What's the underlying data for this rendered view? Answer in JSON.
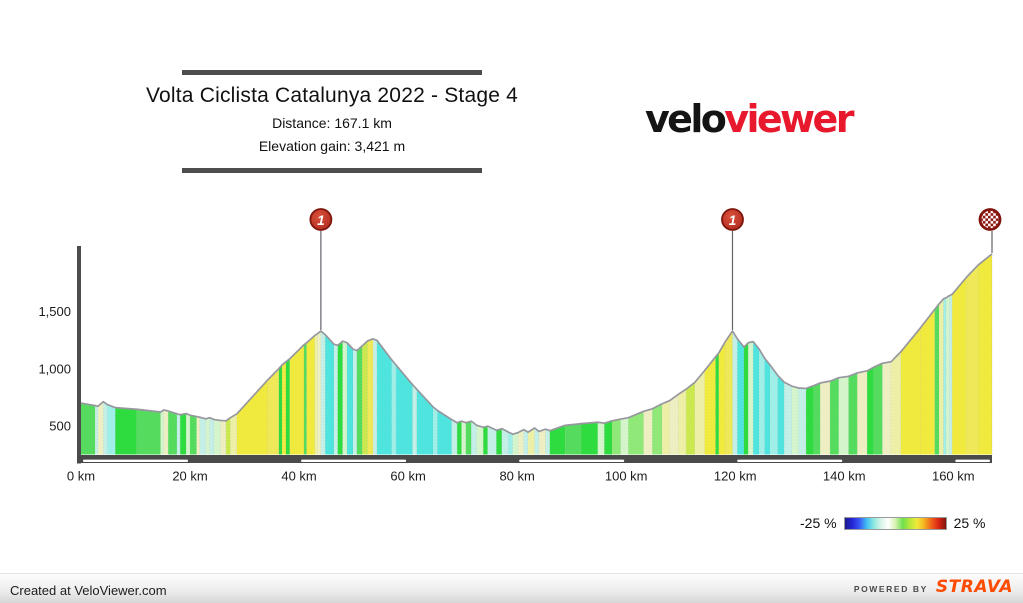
{
  "header": {
    "title": "Volta Ciclista Catalunya 2022 - Stage 4",
    "distance_label": "Distance: 167.1 km",
    "elevation_label": "Elevation gain: 3,421 m",
    "logo": {
      "part1": "velo",
      "part2": "viewer",
      "part2_color": "#e8192c"
    }
  },
  "chart_data": {
    "type": "area",
    "title": "Volta Ciclista Catalunya 2022 - Stage 4",
    "distance_km": 167.1,
    "elevation_gain_m": 3421,
    "xlim": [
      0,
      167.1
    ],
    "ylim": [
      250,
      2050
    ],
    "x_ticks": [
      {
        "km": 0,
        "label": "0 km"
      },
      {
        "km": 20,
        "label": "20 km"
      },
      {
        "km": 40,
        "label": "40 km"
      },
      {
        "km": 60,
        "label": "60 km"
      },
      {
        "km": 80,
        "label": "80 km"
      },
      {
        "km": 100,
        "label": "100 km"
      },
      {
        "km": 120,
        "label": "120 km"
      },
      {
        "km": 140,
        "label": "140 km"
      },
      {
        "km": 160,
        "label": "160 km"
      }
    ],
    "y_ticks": [
      {
        "elev": 500,
        "label": "500"
      },
      {
        "elev": 1000,
        "label": "1,000"
      },
      {
        "elev": 1500,
        "label": "1,500"
      }
    ],
    "grid": false,
    "outline_color": "#97979f",
    "axis_color": "#4d4d4d",
    "start_elev": 700,
    "segments": [
      [
        2.6,
        678,
        "#55DC5F"
      ],
      [
        3.1,
        672,
        "#C4EFE6"
      ],
      [
        4.1,
        712,
        "#EDEEC2"
      ],
      [
        4.8,
        688,
        "#C4EFE6"
      ],
      [
        6.3,
        660,
        "#9FEFE8"
      ],
      [
        10.2,
        646,
        "#2FDC3F"
      ],
      [
        14.6,
        622,
        "#55DC5F"
      ],
      [
        15.2,
        640,
        "#D4F4CC"
      ],
      [
        16.0,
        630,
        "#EDEEC2"
      ],
      [
        17.6,
        606,
        "#55DC5F"
      ],
      [
        18.2,
        598,
        "#C4EFE6"
      ],
      [
        19.3,
        608,
        "#2FDC3F"
      ],
      [
        20.0,
        594,
        "#D4F4CC"
      ],
      [
        21.2,
        582,
        "#55DC5F"
      ],
      [
        21.8,
        576,
        "#EDEEC2"
      ],
      [
        22.9,
        562,
        "#C4EFE6"
      ],
      [
        23.6,
        572,
        "#D4F4CC"
      ],
      [
        24.4,
        556,
        "#C4EFE6"
      ],
      [
        25.6,
        548,
        "#D4F4CC"
      ],
      [
        26.6,
        545,
        "#EDEEC2"
      ],
      [
        27.4,
        572,
        "#CBE84E"
      ],
      [
        28.6,
        606,
        "#EDEFA6"
      ],
      [
        34.2,
        900,
        "#F0E93E"
      ],
      [
        36.3,
        1002,
        "#EFE959"
      ],
      [
        36.9,
        1035,
        "#2FDC3F"
      ],
      [
        37.6,
        1062,
        "#F0E93E"
      ],
      [
        38.3,
        1088,
        "#2FDC3F"
      ],
      [
        40.9,
        1210,
        "#F0E93E"
      ],
      [
        41.4,
        1228,
        "#55DC5F"
      ],
      [
        42.9,
        1292,
        "#F0E93E"
      ],
      [
        43.4,
        1308,
        "#EDEFA6"
      ],
      [
        44.0,
        1330,
        "#EDEEC2"
      ],
      [
        44.8,
        1298,
        "#C4EFE6"
      ],
      [
        46.4,
        1215,
        "#4FE4DE"
      ],
      [
        47.1,
        1205,
        "#C4EFE6"
      ],
      [
        48.0,
        1242,
        "#2FDC3F"
      ],
      [
        48.8,
        1228,
        "#D4F4CC"
      ],
      [
        49.9,
        1172,
        "#4FE4DE"
      ],
      [
        50.6,
        1160,
        "#C4EFE6"
      ],
      [
        51.6,
        1202,
        "#55DC5F"
      ],
      [
        52.6,
        1245,
        "#CBE84E"
      ],
      [
        53.6,
        1262,
        "#EFE959"
      ],
      [
        54.3,
        1248,
        "#C4EFE6"
      ],
      [
        57.0,
        1078,
        "#4FE4DE"
      ],
      [
        57.8,
        1032,
        "#9FEFE8"
      ],
      [
        60.8,
        862,
        "#4FE4DE"
      ],
      [
        61.6,
        820,
        "#C4EFE6"
      ],
      [
        64.6,
        665,
        "#4FE4DE"
      ],
      [
        65.4,
        635,
        "#9FEFE8"
      ],
      [
        68.0,
        555,
        "#4FE4DE"
      ],
      [
        69.0,
        528,
        "#C4EFE6"
      ],
      [
        69.8,
        542,
        "#2FDC3F"
      ],
      [
        70.6,
        528,
        "#D4F4CC"
      ],
      [
        71.6,
        542,
        "#55DC5F"
      ],
      [
        72.6,
        505,
        "#C4EFE6"
      ],
      [
        73.8,
        488,
        "#D4F4CC"
      ],
      [
        74.6,
        498,
        "#2FDC3F"
      ],
      [
        76.2,
        462,
        "#C4EFE6"
      ],
      [
        77.2,
        476,
        "#2FDC3F"
      ],
      [
        78.4,
        446,
        "#C4EFE6"
      ],
      [
        79.2,
        428,
        "#9FEFE8"
      ],
      [
        80.2,
        442,
        "#D4F4CC"
      ],
      [
        81.2,
        468,
        "#EDEEC2"
      ],
      [
        82.0,
        446,
        "#C4EFE6"
      ],
      [
        83.2,
        482,
        "#EDEFA6"
      ],
      [
        84.0,
        452,
        "#C4EFE6"
      ],
      [
        85.2,
        472,
        "#EDEEC2"
      ],
      [
        86.0,
        458,
        "#C4EFE6"
      ],
      [
        88.8,
        505,
        "#2FDC3F"
      ],
      [
        91.8,
        520,
        "#55DC5F"
      ],
      [
        94.8,
        532,
        "#2FDC3F"
      ],
      [
        96.0,
        524,
        "#D4F4CC"
      ],
      [
        97.4,
        545,
        "#2FDC3F"
      ],
      [
        99.0,
        560,
        "#8FE878"
      ],
      [
        100.4,
        572,
        "#D4F4CC"
      ],
      [
        103.2,
        628,
        "#8FE878"
      ],
      [
        104.8,
        650,
        "#EDEEC2"
      ],
      [
        106.6,
        694,
        "#8FE878"
      ],
      [
        108.0,
        722,
        "#EDEFA6"
      ],
      [
        109.6,
        778,
        "#EDEEC2"
      ],
      [
        111.0,
        822,
        "#EDEFA6"
      ],
      [
        112.6,
        882,
        "#CBE84E"
      ],
      [
        114.4,
        985,
        "#EDEFA6"
      ],
      [
        116.4,
        1105,
        "#F0E93E"
      ],
      [
        117.0,
        1140,
        "#2FDC3F"
      ],
      [
        118.2,
        1240,
        "#F0E93E"
      ],
      [
        119.5,
        1330,
        "#EFE959"
      ],
      [
        120.4,
        1262,
        "#C4EFE6"
      ],
      [
        121.6,
        1190,
        "#4FE4DE"
      ],
      [
        122.4,
        1228,
        "#2FDC3F"
      ],
      [
        123.3,
        1238,
        "#D4F4CC"
      ],
      [
        124.4,
        1172,
        "#4FE4DE"
      ],
      [
        125.4,
        1092,
        "#9FEFE8"
      ],
      [
        126.4,
        1032,
        "#4FE4DE"
      ],
      [
        127.8,
        942,
        "#9FEFE8"
      ],
      [
        129.0,
        882,
        "#4FE4DE"
      ],
      [
        130.4,
        848,
        "#C4EFE6"
      ],
      [
        131.6,
        832,
        "#D4F4CC"
      ],
      [
        133.0,
        828,
        "#C4EFE6"
      ],
      [
        134.4,
        852,
        "#2FDC3F"
      ],
      [
        135.6,
        876,
        "#55DC5F"
      ],
      [
        137.4,
        892,
        "#EDEEC2"
      ],
      [
        139.0,
        922,
        "#55DC5F"
      ],
      [
        140.8,
        934,
        "#D4F4CC"
      ],
      [
        142.4,
        964,
        "#55DC5F"
      ],
      [
        144.2,
        982,
        "#EDEEC2"
      ],
      [
        145.4,
        1014,
        "#2FDC3F"
      ],
      [
        147.0,
        1048,
        "#55DC5F"
      ],
      [
        148.6,
        1062,
        "#EDEEC2"
      ],
      [
        150.4,
        1150,
        "#EDEFA6"
      ],
      [
        154.0,
        1360,
        "#F0E93E"
      ],
      [
        156.6,
        1520,
        "#F0E93E"
      ],
      [
        157.4,
        1568,
        "#55DC5F"
      ],
      [
        158.2,
        1612,
        "#EDEFA6"
      ],
      [
        158.7,
        1622,
        "#9FEFE8"
      ],
      [
        159.3,
        1640,
        "#D4F4CC"
      ],
      [
        159.8,
        1652,
        "#C4EFE6"
      ],
      [
        162.4,
        1800,
        "#F0E93E"
      ],
      [
        164.6,
        1910,
        "#EFE959"
      ],
      [
        167.1,
        2005,
        "#F0E93E"
      ]
    ],
    "markers": [
      {
        "km": 44.0,
        "elev": 1330,
        "type": "category-1",
        "label": "1"
      },
      {
        "km": 119.5,
        "elev": 1330,
        "type": "category-1",
        "label": "1"
      },
      {
        "km": 167.1,
        "elev": 2005,
        "type": "finish",
        "label": ""
      }
    ],
    "scale_bar": {
      "block_km": 20,
      "bar_color": "#4a4a4a",
      "tick_color": "#ffffff",
      "highlight_blocks_km": [
        0,
        40,
        80,
        120,
        160
      ]
    }
  },
  "legend": {
    "min_label": "-25 %",
    "max_label": "25 %",
    "gradient": [
      "#1b1b8f",
      "#2525d8",
      "#3a56f5",
      "#3fbff0",
      "#8ee8e0",
      "#d8f5e8",
      "#ffffff",
      "#d6f2b0",
      "#6ee04e",
      "#b8e83a",
      "#f0ea3a",
      "#f5b020",
      "#ef5f1a",
      "#d92312",
      "#7e150d"
    ]
  },
  "footer": {
    "left": "Created at VeloViewer.com",
    "powered_by": "POWERED BY",
    "brand": "STRAVA",
    "brand_color": "#FC4C02"
  }
}
